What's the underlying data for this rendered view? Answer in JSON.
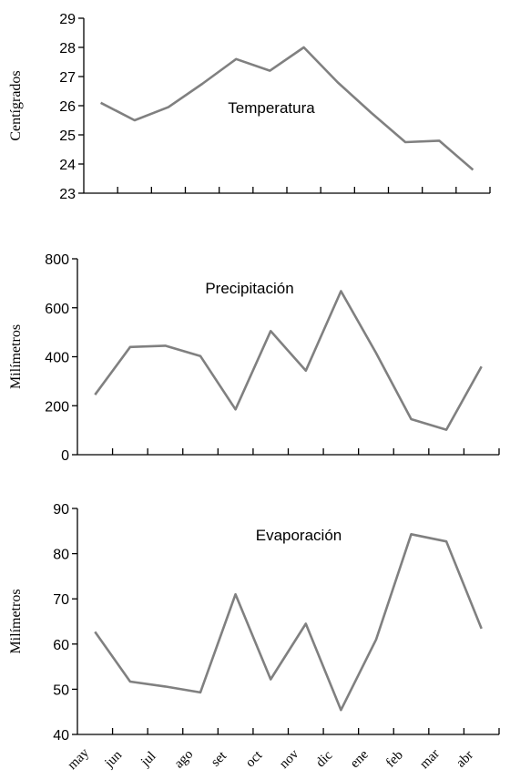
{
  "chart_data": [
    {
      "type": "line",
      "title": "Temperatura",
      "ylabel": "Centígrados",
      "xlabel": "",
      "ylim": [
        23,
        29
      ],
      "yticks": [
        23,
        24,
        25,
        26,
        27,
        28,
        29
      ],
      "categories": [
        "may",
        "jun",
        "jul",
        "ago",
        "set",
        "oct",
        "nov",
        "dic",
        "ene",
        "feb",
        "mar",
        "abr"
      ],
      "points": [
        {
          "x": 0.5,
          "y": 26.1
        },
        {
          "x": 1.5,
          "y": 25.5
        },
        {
          "x": 2.5,
          "y": 25.95
        },
        {
          "x": 3.5,
          "y": 26.75
        },
        {
          "x": 4.5,
          "y": 27.6
        },
        {
          "x": 5.5,
          "y": 27.2
        },
        {
          "x": 6.5,
          "y": 28.0
        },
        {
          "x": 7.5,
          "y": 26.8
        },
        {
          "x": 8.5,
          "y": 25.75
        },
        {
          "x": 9.5,
          "y": 24.75
        },
        {
          "x": 10.5,
          "y": 24.8
        },
        {
          "x": 11.5,
          "y": 23.8
        }
      ],
      "line_color": "#808080",
      "grid": false
    },
    {
      "type": "line",
      "title": "Precipitación",
      "ylabel": "Milímetros",
      "xlabel": "",
      "ylim": [
        0,
        800
      ],
      "yticks": [
        0,
        200,
        400,
        600,
        800
      ],
      "categories": [
        "may",
        "jun",
        "jul",
        "ago",
        "set",
        "oct",
        "nov",
        "dic",
        "ene",
        "feb",
        "mar",
        "abr"
      ],
      "points": [
        {
          "x": 0.5,
          "y": 245
        },
        {
          "x": 1.5,
          "y": 440
        },
        {
          "x": 2.5,
          "y": 445
        },
        {
          "x": 3.5,
          "y": 403
        },
        {
          "x": 4.5,
          "y": 185
        },
        {
          "x": 5.5,
          "y": 505
        },
        {
          "x": 6.5,
          "y": 343
        },
        {
          "x": 7.5,
          "y": 668
        },
        {
          "x": 8.5,
          "y": 415
        },
        {
          "x": 9.5,
          "y": 145
        },
        {
          "x": 10.5,
          "y": 102
        },
        {
          "x": 11.5,
          "y": 360
        }
      ],
      "line_color": "#808080",
      "grid": false
    },
    {
      "type": "line",
      "title": "Evaporación",
      "ylabel": "Milímetros",
      "xlabel": "",
      "ylim": [
        40,
        90
      ],
      "yticks": [
        40,
        50,
        60,
        70,
        80,
        90
      ],
      "categories": [
        "may",
        "jun",
        "jul",
        "ago",
        "set",
        "oct",
        "nov",
        "dic",
        "ene",
        "feb",
        "mar",
        "abr"
      ],
      "points": [
        {
          "x": 0.5,
          "y": 62.7
        },
        {
          "x": 1.5,
          "y": 51.7
        },
        {
          "x": 2.5,
          "y": 50.6
        },
        {
          "x": 3.5,
          "y": 49.3
        },
        {
          "x": 4.5,
          "y": 71.0
        },
        {
          "x": 5.5,
          "y": 52.2
        },
        {
          "x": 6.5,
          "y": 64.5
        },
        {
          "x": 7.5,
          "y": 45.4
        },
        {
          "x": 8.5,
          "y": 61.0
        },
        {
          "x": 9.5,
          "y": 84.3
        },
        {
          "x": 10.5,
          "y": 82.7
        },
        {
          "x": 11.5,
          "y": 63.4
        }
      ],
      "line_color": "#808080",
      "grid": false
    }
  ]
}
